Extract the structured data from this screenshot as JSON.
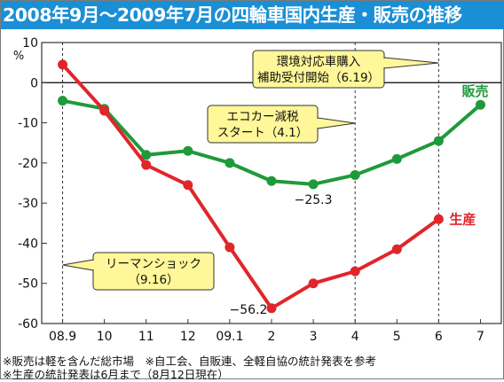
{
  "title": "2008年9月〜2009年7月の四輪車国内生産・販売の推移",
  "notes": {
    "line1": "※販売は軽を含んだ総市場　※自工会、自販連、全軽自協の統計発表を参考",
    "line2": "※生産の統計発表は6月まで（8月12日現在）"
  },
  "colors": {
    "title_bg": "#1a8fd6",
    "sales": "#1f9a3a",
    "production": "#e0262b",
    "callout_bg": "#fff799"
  },
  "chart_data": {
    "type": "line",
    "categories": [
      "08.9",
      "10",
      "11",
      "12",
      "09.1",
      "2",
      "3",
      "4",
      "5",
      "6",
      "7"
    ],
    "ylim": [
      -60,
      10
    ],
    "yticks": [
      10,
      0,
      -10,
      -20,
      -30,
      -40,
      -50,
      -60
    ],
    "yunit": "%",
    "grid": false,
    "series": [
      {
        "name": "販売",
        "color": "#1f9a3a",
        "values": [
          -4.5,
          -6.5,
          -18,
          -17,
          -20,
          -24.5,
          -25.3,
          -23,
          -19,
          -14.5,
          -5.5
        ]
      },
      {
        "name": "生産",
        "color": "#e0262b",
        "values": [
          4.5,
          -7,
          -20.5,
          -25.5,
          -41,
          -56.2,
          -50,
          -47,
          -41.5,
          -34,
          null
        ]
      }
    ],
    "value_labels": [
      {
        "text": "−25.3",
        "series": 0,
        "index": 6
      },
      {
        "text": "−56.2",
        "series": 1,
        "index": 5
      }
    ],
    "annotations": [
      {
        "lines": [
          "環境対応車購入",
          "補助受付開始（6.19）"
        ],
        "at_index": 9
      },
      {
        "lines": [
          "エコカー減税",
          "スタート（4.1）"
        ],
        "at_index": 7
      },
      {
        "lines": [
          "リーマンショック",
          "（9.16）"
        ],
        "at_index": 0
      }
    ]
  }
}
